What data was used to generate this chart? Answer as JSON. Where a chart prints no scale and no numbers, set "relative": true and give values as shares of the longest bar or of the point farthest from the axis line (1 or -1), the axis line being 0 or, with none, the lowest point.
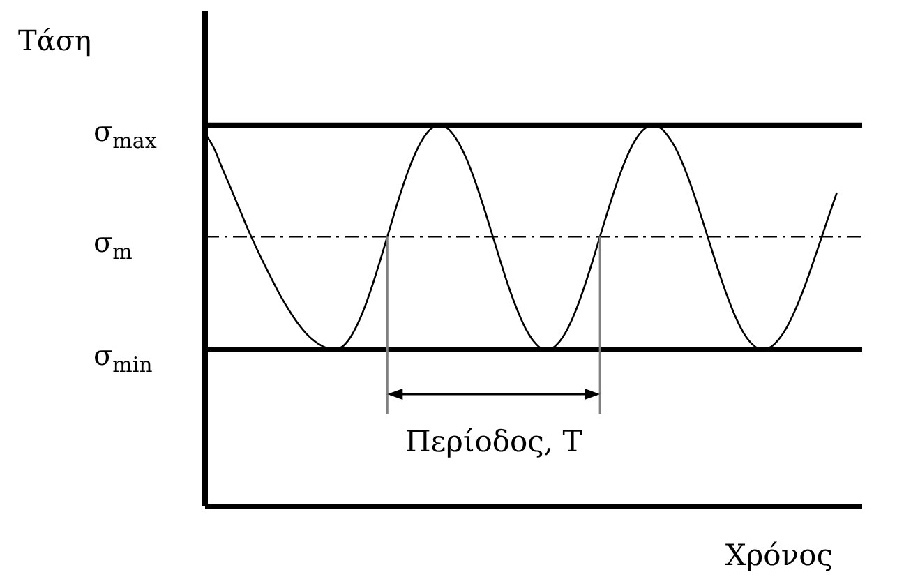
{
  "chart_data": {
    "type": "line",
    "relative": true,
    "ylabel": "Τάση",
    "xlabel": "Χρόνος",
    "marker": "none",
    "categories": [
      null,
      null,
      null,
      null,
      null,
      null,
      null,
      null,
      null,
      null,
      null,
      null,
      null,
      null,
      null,
      null,
      null,
      null,
      null,
      null,
      null,
      null,
      null,
      null,
      null,
      null,
      null,
      null,
      null,
      null,
      null,
      null,
      null,
      null,
      null,
      null,
      null,
      null,
      null,
      null,
      null,
      null,
      null,
      null,
      null,
      null,
      null,
      null,
      null,
      null,
      null,
      null,
      null,
      null,
      null,
      null,
      null,
      null,
      null,
      null,
      null,
      null,
      null,
      null,
      null,
      null,
      null,
      null,
      null,
      null,
      null,
      null,
      null,
      null,
      null,
      null,
      null,
      null,
      null
    ],
    "series": [
      {
        "color": "#000000",
        "values": [
          0.978,
          0.943,
          0.89,
          0.838,
          0.785,
          0.732,
          0.683,
          0.637,
          0.593,
          0.551,
          0.514,
          0.481,
          0.454,
          0.434,
          0.42,
          0.413,
          0.416,
          0.436,
          0.474,
          0.526,
          0.59,
          0.661,
          0.735,
          0.808,
          0.874,
          0.929,
          0.97,
          0.994,
          1.0,
          0.988,
          0.958,
          0.914,
          0.857,
          0.791,
          0.72,
          0.648,
          0.579,
          0.519,
          0.469,
          0.434,
          0.415,
          0.414,
          0.431,
          0.465,
          0.514,
          0.575,
          0.644,
          0.717,
          0.789,
          0.856,
          0.914,
          0.959,
          0.988,
          1.0,
          0.994,
          0.971,
          0.934,
          0.883,
          0.822,
          0.754,
          0.684,
          0.615,
          0.551,
          0.496,
          0.453,
          0.425,
          0.413,
          0.417,
          0.436,
          0.468,
          0.513,
          0.567,
          0.629,
          0.694,
          0.76,
          0.824,
          null,
          null,
          null
        ]
      }
    ],
    "ref_lines": [
      {
        "axis": "y",
        "value": 1,
        "label": "σ$_{max}$",
        "color": "#000000",
        "line_style": "solid"
      },
      {
        "axis": "y",
        "value": 0.708,
        "label": "σ$_{m}$",
        "color": "#000000",
        "line_style": "dashdot"
      },
      {
        "axis": "y",
        "value": 0.412,
        "label": "σ$_{min}$",
        "color": "#000000",
        "line_style": "solid"
      }
    ],
    "annotations": [
      "Περίοδος, T"
    ]
  }
}
